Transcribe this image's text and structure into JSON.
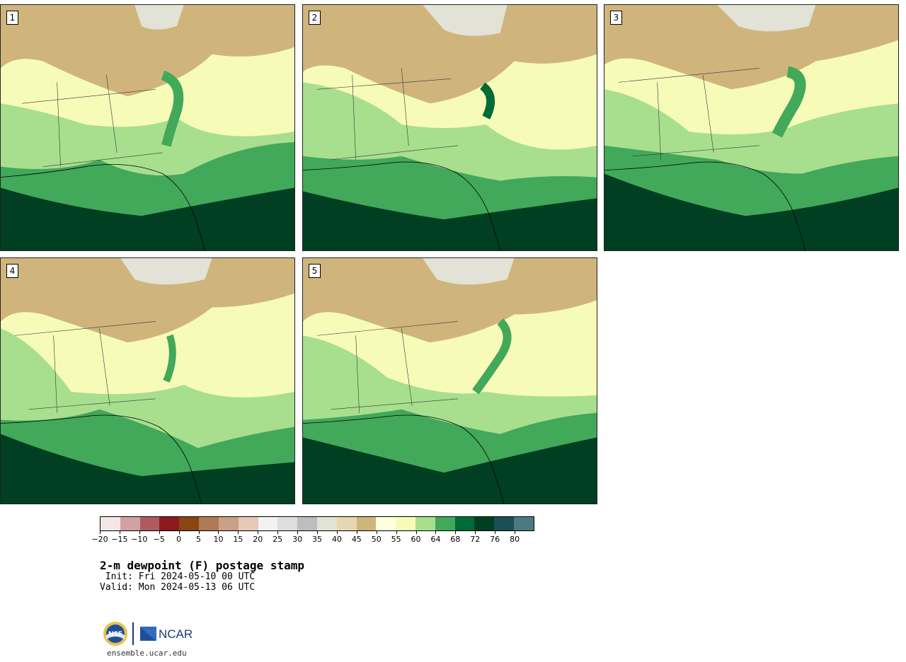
{
  "panels": [
    {
      "label": "1"
    },
    {
      "label": "2"
    },
    {
      "label": "3"
    },
    {
      "label": "4"
    },
    {
      "label": "5"
    }
  ],
  "colorbar": {
    "colors": [
      "#f5e6e6",
      "#d3a0a3",
      "#b05a60",
      "#8b1a1e",
      "#8b4513",
      "#b07a55",
      "#c9a088",
      "#e6c8b8",
      "#f2f2f2",
      "#dedede",
      "#bdbdbd",
      "#e2e2d6",
      "#e6d7b0",
      "#cfb57c",
      "#ffffe0",
      "#f7fbb8",
      "#a8df8e",
      "#42a85a",
      "#006b35",
      "#003f22",
      "#1a4f55",
      "#4c7a80"
    ],
    "ticks": [
      "−20",
      "−15",
      "−10",
      "−5",
      "0",
      "5",
      "10",
      "15",
      "20",
      "25",
      "30",
      "35",
      "40",
      "45",
      "50",
      "55",
      "60",
      "64",
      "68",
      "72",
      "76",
      "80"
    ]
  },
  "title": "2-m dewpoint (F) postage stamp",
  "init": " Init: Fri 2024-05-10 00 UTC",
  "valid": "Valid: Mon 2024-05-13 06 UTC",
  "footer": {
    "site": "ensemble.ucar.edu",
    "nsf_logo": "nsf-logo",
    "ncar_logo": "ncar-logo",
    "ncar_text": "NCAR"
  }
}
